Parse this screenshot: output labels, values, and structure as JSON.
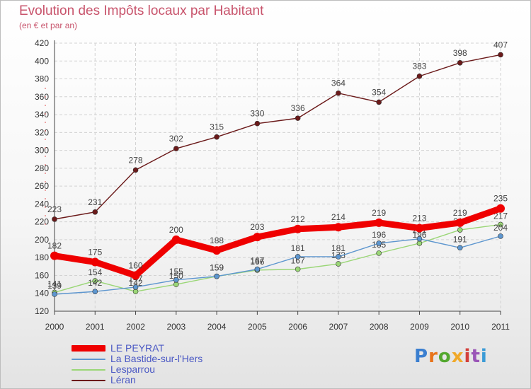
{
  "header": {
    "title": "Evolution des Impôts locaux par Habitant",
    "subtitle": "(en € et par an)"
  },
  "brand": {
    "letters": [
      "P",
      "r",
      "o",
      "x",
      "i",
      "t",
      "i"
    ]
  },
  "chart_data": {
    "type": "line",
    "x": [
      "2000",
      "2001",
      "2002",
      "2003",
      "2004",
      "2005",
      "2006",
      "2007",
      "2008",
      "2009",
      "2010",
      "2011"
    ],
    "ylim": [
      120,
      420
    ],
    "yticks": [
      120,
      140,
      160,
      180,
      200,
      220,
      240,
      260,
      280,
      300,
      320,
      340,
      360,
      380,
      400,
      420
    ],
    "grid": true,
    "legend_position": "bottom-left",
    "series": [
      {
        "name": "Léran",
        "color": "#6b1a1a",
        "values": [
          223,
          231,
          278,
          302,
          315,
          330,
          336,
          364,
          354,
          383,
          398,
          407
        ],
        "labels": true
      },
      {
        "name": "Lesparrou",
        "color": "#9ad676",
        "values": [
          141,
          154,
          142,
          150,
          159,
          166,
          167,
          173,
          185,
          196,
          211,
          217
        ],
        "labels": true
      },
      {
        "name": "La Bastide-sur-l'Hers",
        "color": "#5d96cf",
        "values": [
          139,
          142,
          147,
          155,
          159,
          167,
          181,
          181,
          196,
          201,
          191,
          204
        ],
        "labels": true
      },
      {
        "name": "LE PEYRAT",
        "color": "#ef0000",
        "values": [
          182,
          175,
          160,
          200,
          188,
          203,
          212,
          214,
          219,
          213,
          219,
          235
        ],
        "labels": true,
        "thick": true
      }
    ]
  }
}
